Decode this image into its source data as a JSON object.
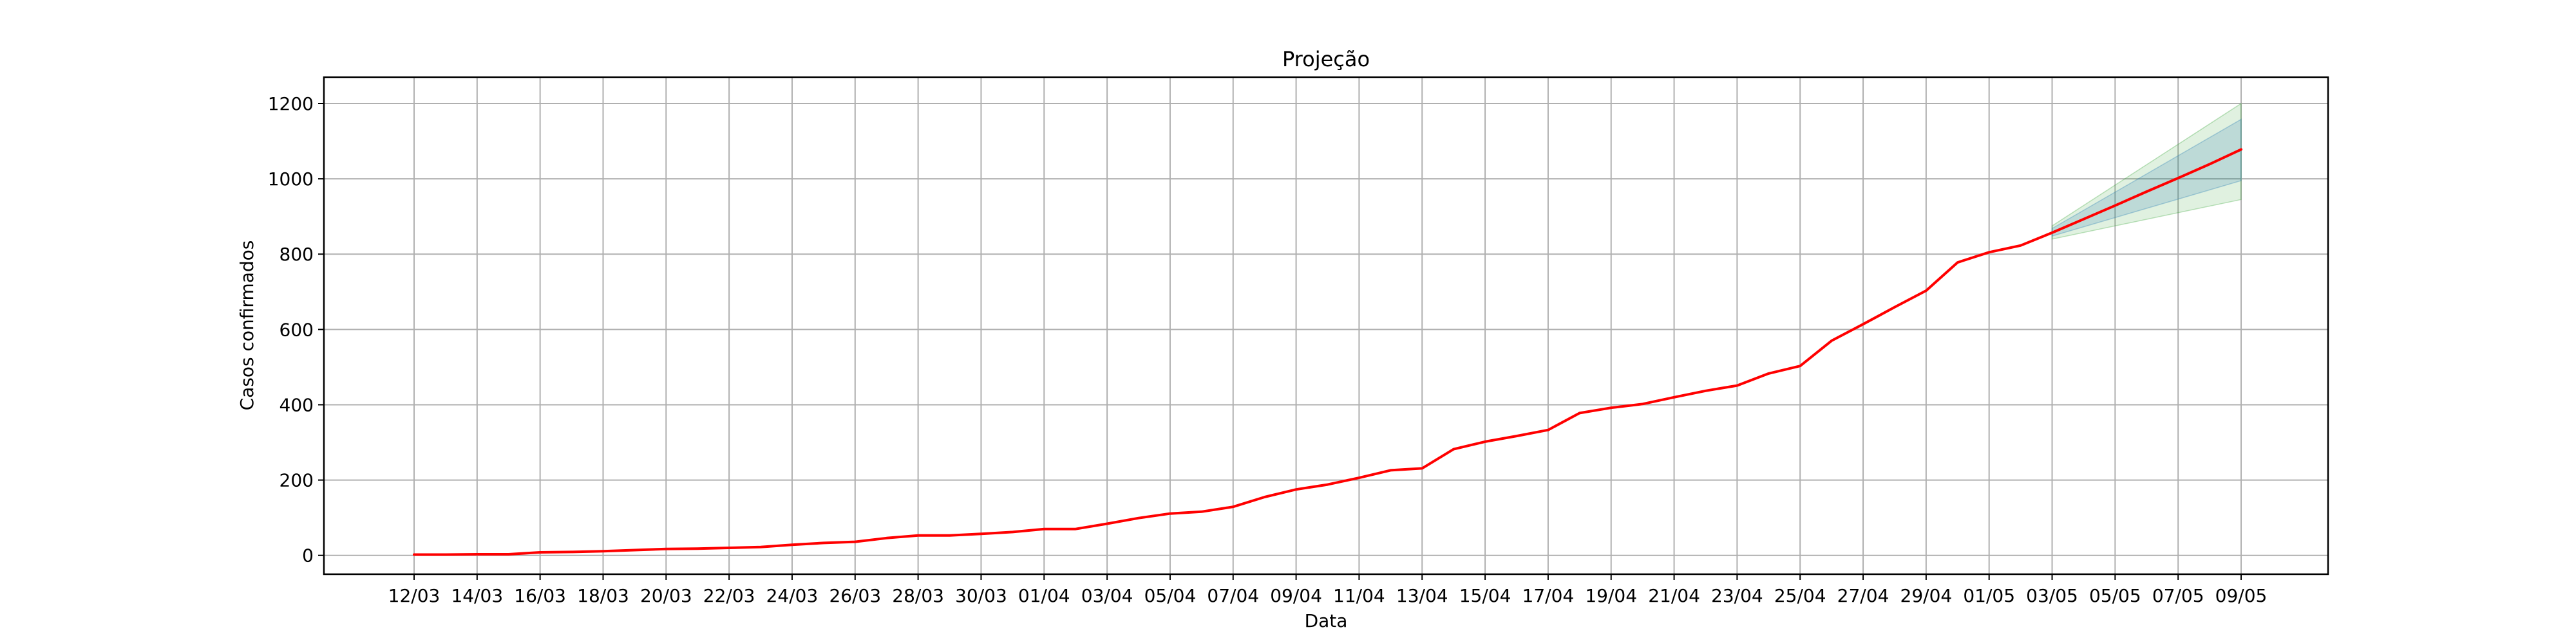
{
  "chart_data": {
    "type": "line",
    "title": "Projeção",
    "xlabel": "Data",
    "ylabel": "Casos confirmados",
    "ylim": [
      -50,
      1270
    ],
    "grid": true,
    "yticks": [
      0,
      200,
      400,
      600,
      800,
      1000,
      1200
    ],
    "xtick_labels": [
      "12/03",
      "14/03",
      "16/03",
      "18/03",
      "20/03",
      "22/03",
      "24/03",
      "26/03",
      "28/03",
      "30/03",
      "01/04",
      "03/04",
      "05/04",
      "07/04",
      "09/04",
      "11/04",
      "13/04",
      "15/04",
      "17/04",
      "19/04",
      "21/04",
      "23/04",
      "25/04",
      "27/04",
      "29/04",
      "01/05",
      "03/05",
      "05/05",
      "07/05",
      "09/05"
    ],
    "x": [
      "12/03",
      "13/03",
      "14/03",
      "15/03",
      "16/03",
      "17/03",
      "18/03",
      "19/03",
      "20/03",
      "21/03",
      "22/03",
      "23/03",
      "24/03",
      "25/03",
      "26/03",
      "27/03",
      "28/03",
      "29/03",
      "30/03",
      "31/03",
      "01/04",
      "02/04",
      "03/04",
      "04/04",
      "05/04",
      "06/04",
      "07/04",
      "08/04",
      "09/04",
      "10/04",
      "11/04",
      "12/04",
      "13/04",
      "14/04",
      "15/04",
      "16/04",
      "17/04",
      "18/04",
      "19/04",
      "20/04",
      "21/04",
      "22/04",
      "23/04",
      "24/04",
      "25/04",
      "26/04",
      "27/04",
      "28/04",
      "29/04",
      "30/04",
      "01/05",
      "02/05",
      "03/05",
      "04/05",
      "05/05",
      "06/05",
      "07/05",
      "08/05",
      "09/05"
    ],
    "series": [
      {
        "color": "#ff0000",
        "values": [
          2,
          2,
          3,
          3,
          8,
          9,
          11,
          14,
          17,
          18,
          20,
          22,
          28,
          33,
          36,
          46,
          53,
          53,
          57,
          62,
          70,
          70,
          84,
          99,
          111,
          116,
          129,
          155,
          175,
          188,
          206,
          226,
          231,
          282,
          302,
          317,
          333,
          378,
          392,
          402,
          420,
          437,
          451,
          483,
          503,
          570,
          614,
          659,
          703,
          778,
          805,
          823,
          857,
          893,
          929,
          966,
          1002,
          1039,
          1078
        ]
      }
    ],
    "bands": [
      {
        "color": "#2ca02c",
        "opacity": 0.15,
        "x": [
          "03/05",
          "09/05"
        ],
        "lower": [
          840,
          945
        ],
        "upper": [
          875,
          1200
        ]
      },
      {
        "color": "#1f77b4",
        "opacity": 0.18,
        "x": [
          "03/05",
          "09/05"
        ],
        "lower": [
          848,
          995
        ],
        "upper": [
          868,
          1158
        ]
      }
    ]
  }
}
